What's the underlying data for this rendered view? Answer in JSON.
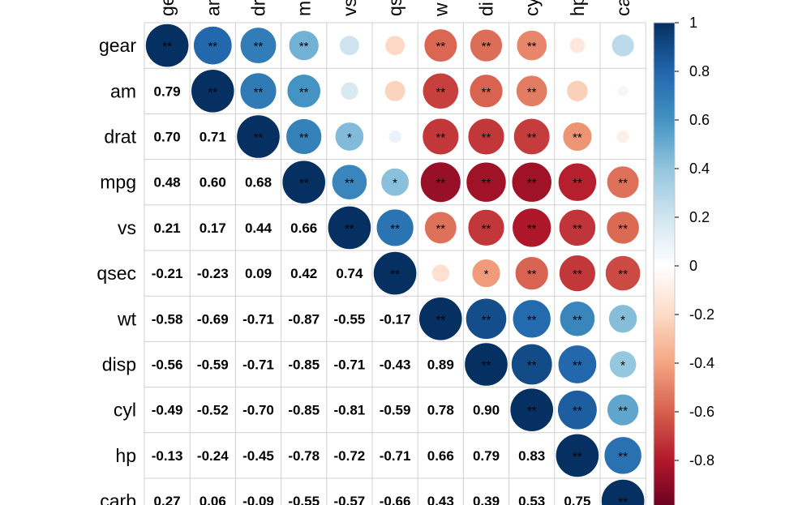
{
  "chart_data": {
    "type": "heatmap",
    "title": "",
    "variables": [
      "gear",
      "am",
      "drat",
      "mpg",
      "vs",
      "qsec",
      "wt",
      "disp",
      "cyl",
      "hp",
      "carb"
    ],
    "column_labels": [
      "ge",
      "am",
      "dr",
      "m",
      "vs",
      "qs",
      "w",
      "di",
      "cy",
      "hp",
      "ca"
    ],
    "correlation_matrix": [
      [
        1.0,
        0.79,
        0.7,
        0.48,
        0.21,
        -0.21,
        -0.58,
        -0.56,
        -0.49,
        -0.13,
        0.27
      ],
      [
        0.79,
        1.0,
        0.71,
        0.6,
        0.17,
        -0.23,
        -0.69,
        -0.59,
        -0.52,
        -0.24,
        0.06
      ],
      [
        0.7,
        0.71,
        1.0,
        0.68,
        0.44,
        0.09,
        -0.71,
        -0.71,
        -0.7,
        -0.45,
        -0.09
      ],
      [
        0.48,
        0.6,
        0.68,
        1.0,
        0.66,
        0.42,
        -0.87,
        -0.85,
        -0.85,
        -0.78,
        -0.55
      ],
      [
        0.21,
        0.17,
        0.44,
        0.66,
        1.0,
        0.74,
        -0.55,
        -0.71,
        -0.81,
        -0.72,
        -0.57
      ],
      [
        -0.21,
        -0.23,
        0.09,
        0.42,
        0.74,
        1.0,
        -0.17,
        -0.43,
        -0.59,
        -0.71,
        -0.66
      ],
      [
        -0.58,
        -0.69,
        -0.71,
        -0.87,
        -0.55,
        -0.17,
        1.0,
        0.89,
        0.78,
        0.66,
        0.43
      ],
      [
        -0.56,
        -0.59,
        -0.71,
        -0.85,
        -0.71,
        -0.43,
        0.89,
        1.0,
        0.9,
        0.79,
        0.39
      ],
      [
        -0.49,
        -0.52,
        -0.7,
        -0.85,
        -0.81,
        -0.59,
        0.78,
        0.9,
        1.0,
        0.83,
        0.53
      ],
      [
        -0.13,
        -0.24,
        -0.45,
        -0.78,
        -0.72,
        -0.71,
        0.66,
        0.79,
        0.83,
        1.0,
        0.75
      ],
      [
        0.27,
        0.06,
        -0.09,
        -0.55,
        -0.57,
        -0.66,
        0.43,
        0.39,
        0.53,
        0.75,
        1.0
      ]
    ],
    "lower_labels": [
      [],
      [
        "0.79"
      ],
      [
        "0.70",
        "0.71"
      ],
      [
        "0.48",
        "0.60",
        "0.68"
      ],
      [
        "0.21",
        "0.17",
        "0.44",
        "0.66"
      ],
      [
        "-0.21",
        "-0.23",
        "0.09",
        "0.42",
        "0.74"
      ],
      [
        "-0.58",
        "-0.69",
        "-0.71",
        "-0.87",
        "-0.55",
        "-0.17"
      ],
      [
        "-0.56",
        "-0.59",
        "-0.71",
        "-0.85",
        "-0.71",
        "-0.43",
        "0.89"
      ],
      [
        "-0.49",
        "-0.52",
        "-0.70",
        "-0.85",
        "-0.81",
        "-0.59",
        "0.78",
        "0.90"
      ],
      [
        "-0.13",
        "-0.24",
        "-0.45",
        "-0.78",
        "-0.72",
        "-0.71",
        "0.66",
        "0.79",
        "0.83"
      ],
      [
        "0.27",
        "0.06",
        "-0.09",
        "-0.55",
        "-0.57",
        "-0.66",
        "0.43",
        "0.39",
        "0.53",
        "0.75"
      ]
    ],
    "significance": [
      [
        "**",
        "**",
        "**",
        "**",
        "",
        "",
        "**",
        "**",
        "**",
        "",
        ""
      ],
      [
        "",
        "**",
        "**",
        "**",
        "",
        "",
        "**",
        "**",
        "**",
        "",
        ""
      ],
      [
        "",
        "",
        "**",
        "**",
        "*",
        "",
        "**",
        "**",
        "**",
        "**",
        ""
      ],
      [
        "",
        "",
        "",
        "**",
        "**",
        "*",
        "**",
        "**",
        "**",
        "**",
        "**"
      ],
      [
        "",
        "",
        "",
        "",
        "**",
        "**",
        "**",
        "**",
        "**",
        "**",
        "**"
      ],
      [
        "",
        "",
        "",
        "",
        "",
        "**",
        "",
        "*",
        "**",
        "**",
        "**"
      ],
      [
        "",
        "",
        "",
        "",
        "",
        "",
        "**",
        "**",
        "**",
        "**",
        "*"
      ],
      [
        "",
        "",
        "",
        "",
        "",
        "",
        "",
        "**",
        "**",
        "**",
        "*"
      ],
      [
        "",
        "",
        "",
        "",
        "",
        "",
        "",
        "",
        "**",
        "**",
        "**"
      ],
      [
        "",
        "",
        "",
        "",
        "",
        "",
        "",
        "",
        "",
        "**",
        "**"
      ],
      [
        "",
        "",
        "",
        "",
        "",
        "",
        "",
        "",
        "",
        "",
        "**"
      ]
    ],
    "upper_glyph": "circle",
    "lower_glyph": "number",
    "colorbar": {
      "range": [
        -1,
        1
      ],
      "ticks": [
        1,
        0.8,
        0.6,
        0.4,
        0.2,
        0,
        -0.2,
        -0.4,
        -0.6,
        -0.8
      ],
      "tick_labels": [
        "1",
        "0.8",
        "0.6",
        "0.4",
        "0.2",
        "0",
        "-0.2",
        "-0.4",
        "-0.6",
        "-0.8"
      ],
      "colors": [
        "#67001F",
        "#B2182B",
        "#D6604D",
        "#F4A582",
        "#FDDBC7",
        "#FFFFFF",
        "#D1E5F0",
        "#92C5DE",
        "#4393C3",
        "#2166AC",
        "#053061"
      ]
    },
    "grid": true
  }
}
